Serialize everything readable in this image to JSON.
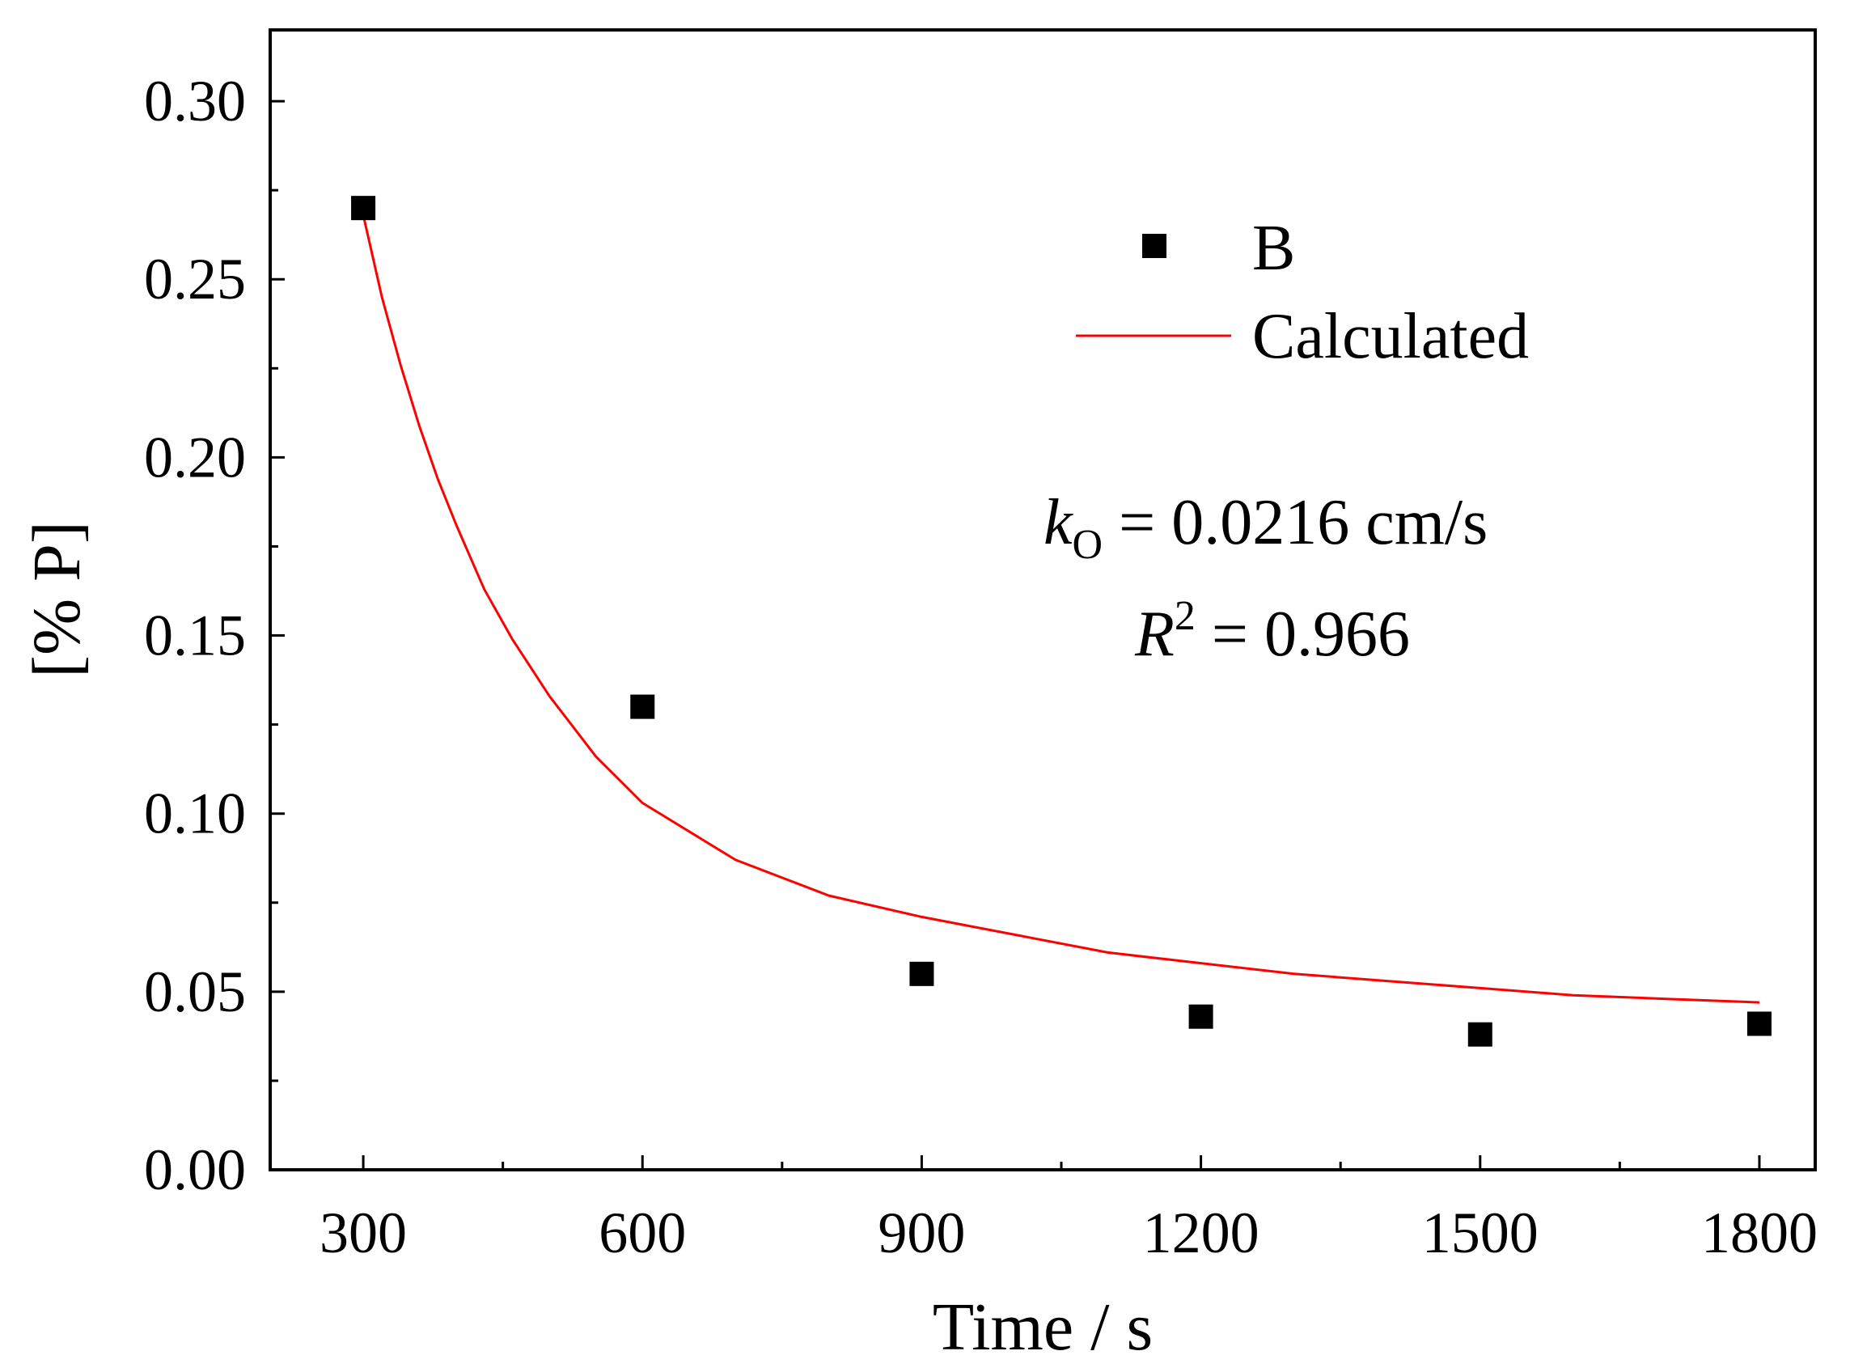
{
  "chart_data": {
    "type": "scatter",
    "title": "",
    "xlabel": "Time / s",
    "ylabel": "[% P]",
    "xlim": [
      200,
      1860
    ],
    "ylim": [
      0,
      0.32
    ],
    "xticks": [
      300,
      600,
      900,
      1200,
      1500,
      1800
    ],
    "xtick_labels": [
      "300",
      "600",
      "900",
      "1200",
      "1500",
      "1800"
    ],
    "yticks": [
      0,
      0.05,
      0.1,
      0.15,
      0.2,
      0.25,
      0.3
    ],
    "ytick_labels": [
      "0.00",
      "0.05",
      "0.10",
      "0.15",
      "0.20",
      "0.25",
      "0.30"
    ],
    "grid": false,
    "legend_position": "top-right",
    "series": [
      {
        "name": "B",
        "kind": "scatter",
        "marker": "square",
        "color": "#000000",
        "x": [
          300,
          600,
          900,
          1200,
          1500,
          1800
        ],
        "y": [
          0.27,
          0.13,
          0.055,
          0.043,
          0.038,
          0.041
        ]
      },
      {
        "name": "Calculated",
        "kind": "line",
        "color": "#ff0000",
        "x": [
          300,
          320,
          340,
          360,
          380,
          400,
          430,
          460,
          500,
          550,
          600,
          700,
          800,
          900,
          1000,
          1100,
          1200,
          1300,
          1400,
          1500,
          1600,
          1700,
          1800
        ],
        "y": [
          0.268,
          0.245,
          0.226,
          0.209,
          0.194,
          0.181,
          0.163,
          0.149,
          0.133,
          0.116,
          0.103,
          0.087,
          0.077,
          0.071,
          0.066,
          0.061,
          0.058,
          0.055,
          0.053,
          0.051,
          0.049,
          0.048,
          0.047
        ]
      }
    ],
    "annotations": {
      "k_symbol": "k",
      "k_subscript": "O",
      "k_value": " = 0.0216 cm/s",
      "r_symbol": "R",
      "r_superscript": "2",
      "r_value": " = 0.966"
    }
  }
}
